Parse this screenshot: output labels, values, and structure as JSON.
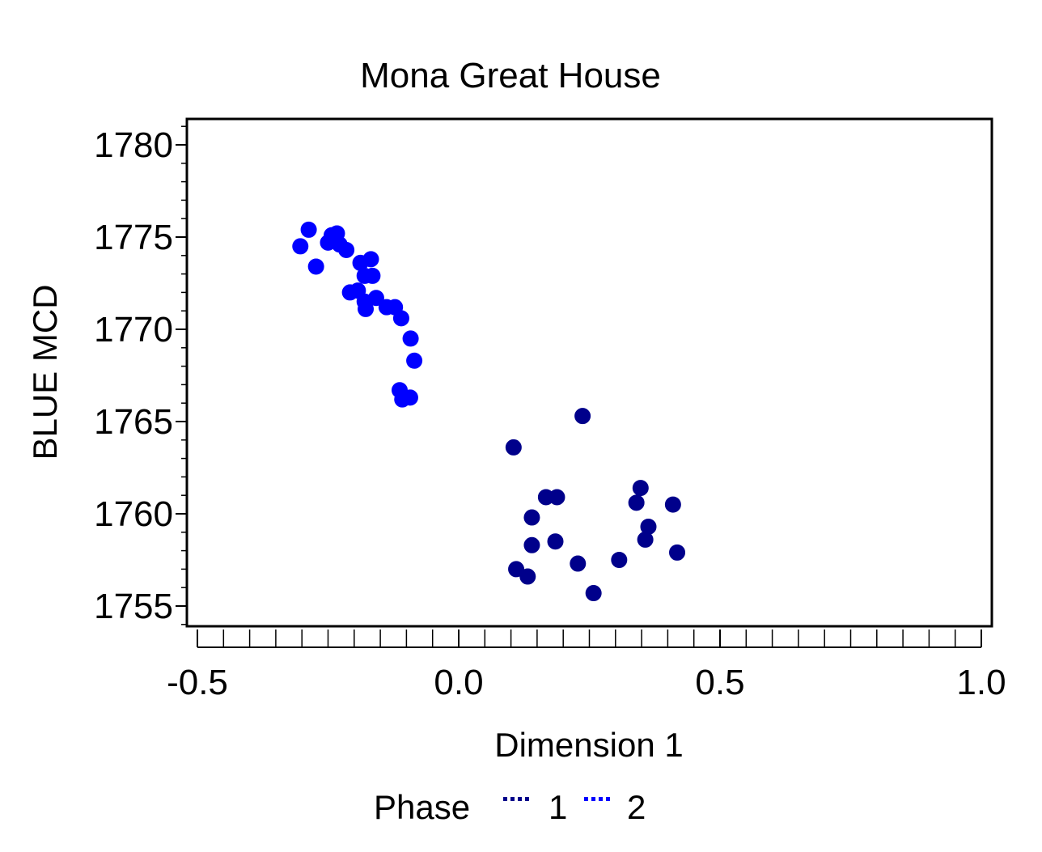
{
  "chart_data": {
    "type": "scatter",
    "title": "Mona Great House",
    "xlabel": "Dimension 1",
    "ylabel": "BLUE MCD",
    "xlim": [
      -0.5,
      1.0
    ],
    "ylim": [
      1754,
      1781.3
    ],
    "x_ticks": [
      "-0.5",
      "0.0",
      "0.5",
      "1.0"
    ],
    "y_ticks": [
      "1755",
      "1760",
      "1765",
      "1770",
      "1775",
      "1780"
    ],
    "grid": false,
    "legend": {
      "title": "Phase",
      "position": "bottom",
      "entries": [
        "1",
        "2"
      ]
    },
    "series": [
      {
        "name": "1",
        "color": "#00008b",
        "points": [
          [
            0.105,
            1763.6
          ],
          [
            0.237,
            1765.3
          ],
          [
            0.167,
            1760.9
          ],
          [
            0.188,
            1760.9
          ],
          [
            0.14,
            1759.8
          ],
          [
            0.14,
            1758.3
          ],
          [
            0.185,
            1758.5
          ],
          [
            0.11,
            1757.0
          ],
          [
            0.132,
            1756.6
          ],
          [
            0.228,
            1757.3
          ],
          [
            0.258,
            1755.7
          ],
          [
            0.307,
            1757.5
          ],
          [
            0.34,
            1760.6
          ],
          [
            0.348,
            1761.4
          ],
          [
            0.357,
            1758.6
          ],
          [
            0.363,
            1759.3
          ],
          [
            0.41,
            1760.5
          ],
          [
            0.418,
            1757.9
          ]
        ]
      },
      {
        "name": "2",
        "color": "#0000ff",
        "points": [
          [
            -0.303,
            1774.5
          ],
          [
            -0.287,
            1775.4
          ],
          [
            -0.273,
            1773.4
          ],
          [
            -0.25,
            1774.7
          ],
          [
            -0.243,
            1775.1
          ],
          [
            -0.233,
            1775.2
          ],
          [
            -0.228,
            1774.6
          ],
          [
            -0.215,
            1774.3
          ],
          [
            -0.188,
            1773.6
          ],
          [
            -0.18,
            1772.9
          ],
          [
            -0.168,
            1773.8
          ],
          [
            -0.165,
            1772.9
          ],
          [
            -0.208,
            1772.0
          ],
          [
            -0.193,
            1772.1
          ],
          [
            -0.18,
            1771.5
          ],
          [
            -0.178,
            1771.1
          ],
          [
            -0.158,
            1771.7
          ],
          [
            -0.138,
            1771.2
          ],
          [
            -0.122,
            1771.2
          ],
          [
            -0.11,
            1770.6
          ],
          [
            -0.092,
            1769.5
          ],
          [
            -0.085,
            1768.3
          ],
          [
            -0.113,
            1766.7
          ],
          [
            -0.108,
            1766.2
          ],
          [
            -0.093,
            1766.3
          ]
        ]
      }
    ]
  }
}
